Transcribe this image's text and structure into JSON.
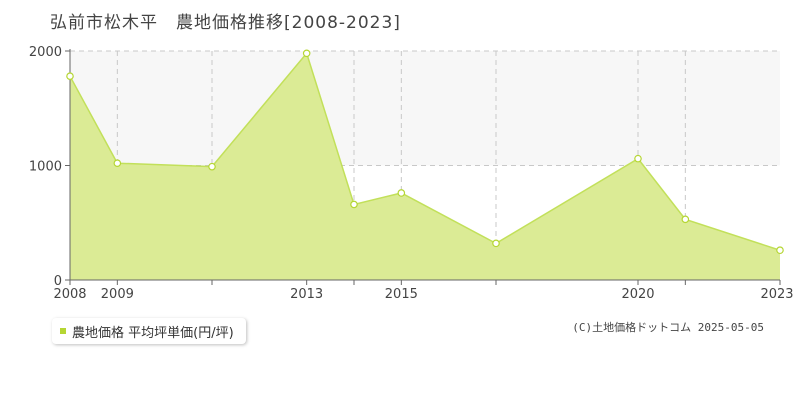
{
  "header": {
    "title": "弘前市松木平　農地価格推移[2008-2023]"
  },
  "legend": {
    "label": "農地価格 平均坪単価(円/坪)"
  },
  "footer": {
    "credit": "(C)土地価格ドットコム 2025-05-05"
  },
  "colors": {
    "fill": "#dbeb95",
    "line": "#c2e05a",
    "marker_fill": "#ffffff",
    "marker_stroke": "#b5d633",
    "grid": "#c8c8c8",
    "band": "#f7f7f7"
  },
  "chart_data": {
    "type": "area",
    "title": "弘前市松木平　農地価格推移[2008-2023]",
    "xlabel": "",
    "ylabel": "",
    "x": [
      2008,
      2009,
      2011,
      2013,
      2014,
      2015,
      2017,
      2020,
      2021,
      2023
    ],
    "xlim": [
      2008,
      2023
    ],
    "ylim": [
      0,
      2000
    ],
    "y_ticks": [
      0,
      1000,
      2000
    ],
    "x_tick_labels": [
      2008,
      2009,
      2013,
      2015,
      2020,
      2023
    ],
    "x_gridlines": [
      2009,
      2011,
      2013,
      2014,
      2015,
      2017,
      2020,
      2021
    ],
    "grid": true,
    "series": [
      {
        "name": "農地価格 平均坪単価(円/坪)",
        "values": [
          1780,
          1020,
          990,
          1980,
          660,
          760,
          320,
          1060,
          530,
          260
        ]
      }
    ],
    "legend_position": "bottom-left"
  }
}
